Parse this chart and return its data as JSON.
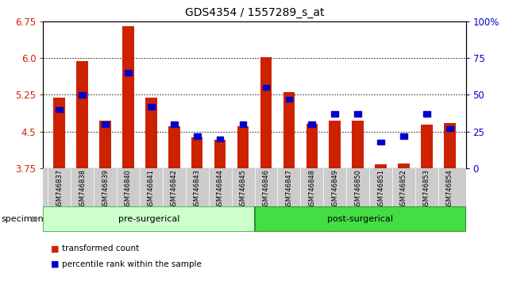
{
  "title": "GDS4354 / 1557289_s_at",
  "samples": [
    "GSM746837",
    "GSM746838",
    "GSM746839",
    "GSM746840",
    "GSM746841",
    "GSM746842",
    "GSM746843",
    "GSM746844",
    "GSM746845",
    "GSM746846",
    "GSM746847",
    "GSM746848",
    "GSM746849",
    "GSM746850",
    "GSM746851",
    "GSM746852",
    "GSM746853",
    "GSM746854"
  ],
  "transformed_count": [
    5.2,
    5.93,
    4.72,
    6.65,
    5.2,
    4.62,
    4.38,
    4.33,
    4.62,
    6.01,
    5.3,
    4.66,
    4.73,
    4.73,
    3.83,
    3.85,
    4.65,
    4.67
  ],
  "percentile_rank": [
    40,
    50,
    30,
    65,
    42,
    30,
    22,
    20,
    30,
    55,
    47,
    30,
    37,
    37,
    18,
    22,
    37,
    27
  ],
  "ymin": 3.75,
  "ymax": 6.75,
  "yticks": [
    3.75,
    4.5,
    5.25,
    6.0,
    6.75
  ],
  "right_yticks": [
    0,
    25,
    50,
    75,
    100
  ],
  "pre_surgical_count": 9,
  "post_surgical_count": 9,
  "pre_label": "pre-surgerical",
  "post_label": "post-surgerical",
  "pre_color": "#ccffcc",
  "post_color": "#44dd44",
  "pre_edge": "#33aa33",
  "post_edge": "#228822",
  "bar_color": "#cc2200",
  "percentile_color": "#0000cc",
  "gray_bg": "#cccccc",
  "legend_items": [
    "transformed count",
    "percentile rank within the sample"
  ],
  "bar_width": 0.5
}
